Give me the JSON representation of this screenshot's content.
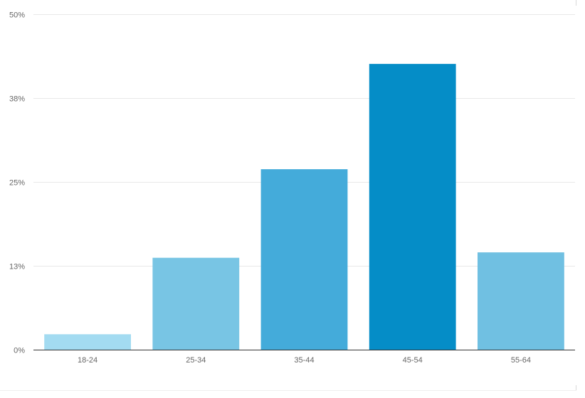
{
  "chart_data": {
    "type": "bar",
    "title": "",
    "xlabel": "",
    "ylabel": "",
    "categories": [
      "18-24",
      "25-34",
      "35-44",
      "45-54",
      "55-64"
    ],
    "values": [
      2.3,
      13.7,
      26.9,
      42.6,
      14.5
    ],
    "colors": [
      "#a3dbf1",
      "#78c5e4",
      "#44abda",
      "#058dc7",
      "#70c0e2"
    ],
    "ylim": [
      0,
      50
    ],
    "yticks": [
      0,
      12.5,
      25,
      37.5,
      50
    ],
    "ytick_labels": [
      "0%",
      "13%",
      "25%",
      "38%",
      "50%"
    ],
    "grid": true,
    "gridline_color": "#e8e8e8",
    "axis_color": "#333333",
    "legend": "none"
  }
}
